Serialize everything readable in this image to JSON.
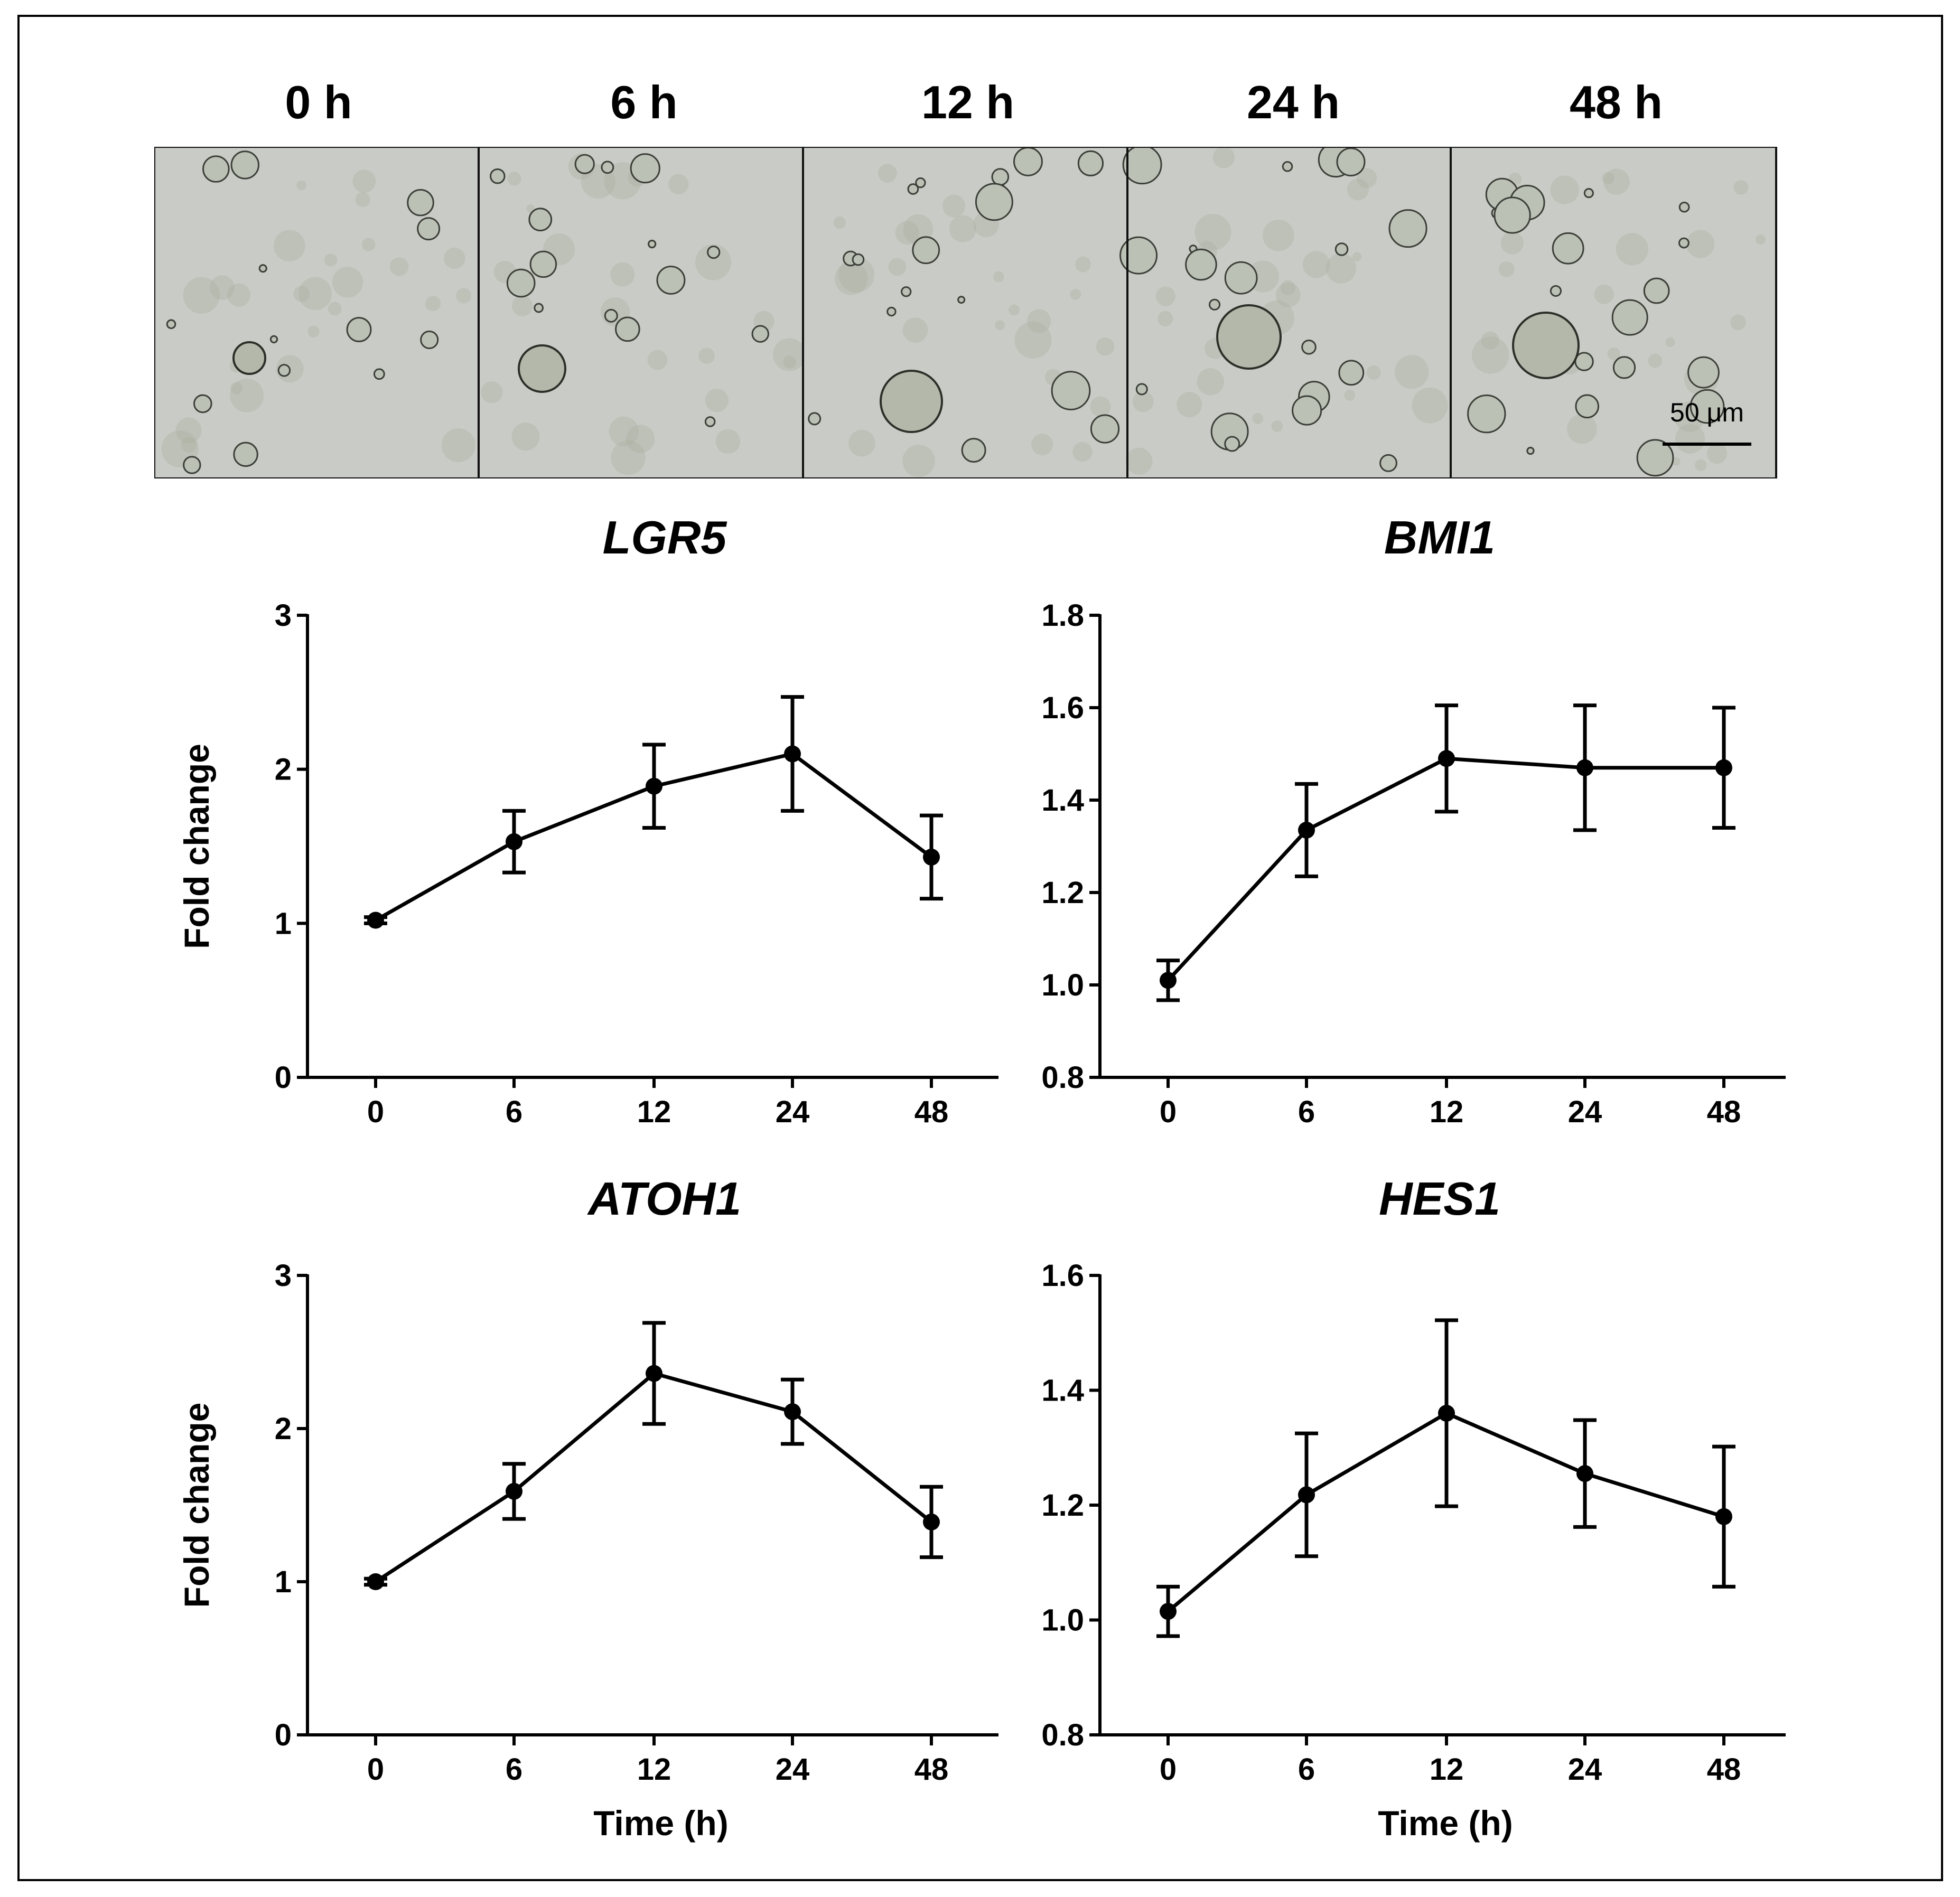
{
  "micrographs": {
    "time_labels": [
      "0 h",
      "6 h",
      "12 h",
      "24 h",
      "48 h"
    ],
    "scale_bar_label": "50 μm",
    "background_color": "#c9cbc6"
  },
  "chart_data": [
    {
      "type": "line",
      "title": "LGR5",
      "xlabel": "",
      "ylabel": "Fold change",
      "categories": [
        "0",
        "6",
        "12",
        "24",
        "48"
      ],
      "values": [
        1.02,
        1.53,
        1.89,
        2.1,
        1.43
      ],
      "error": [
        0.02,
        0.2,
        0.27,
        0.37,
        0.27
      ],
      "ylim": [
        0,
        3
      ],
      "yticks": [
        "0",
        "1",
        "2",
        "3"
      ]
    },
    {
      "type": "line",
      "title": "BMI1",
      "xlabel": "",
      "ylabel": "",
      "categories": [
        "0",
        "6",
        "12",
        "24",
        "48"
      ],
      "values": [
        1.01,
        1.335,
        1.49,
        1.47,
        1.47
      ],
      "error": [
        0.043,
        0.1,
        0.115,
        0.135,
        0.13
      ],
      "ylim": [
        0.8,
        1.8
      ],
      "yticks": [
        "0.8",
        "1.0",
        "1.2",
        "1.4",
        "1.6",
        "1.8"
      ]
    },
    {
      "type": "line",
      "title": "ATOH1",
      "xlabel": "Time (h)",
      "ylabel": "Fold change",
      "categories": [
        "0",
        "6",
        "12",
        "24",
        "48"
      ],
      "values": [
        1.0,
        1.59,
        2.36,
        2.11,
        1.39
      ],
      "error": [
        0.02,
        0.18,
        0.33,
        0.21,
        0.23
      ],
      "ylim": [
        0,
        3
      ],
      "yticks": [
        "0",
        "1",
        "2",
        "3"
      ]
    },
    {
      "type": "line",
      "title": "HES1",
      "xlabel": "Time (h)",
      "ylabel": "",
      "categories": [
        "0",
        "6",
        "12",
        "24",
        "48"
      ],
      "values": [
        1.015,
        1.218,
        1.36,
        1.255,
        1.18
      ],
      "error": [
        0.043,
        0.107,
        0.162,
        0.093,
        0.122
      ],
      "ylim": [
        0.8,
        1.6
      ],
      "yticks": [
        "0.8",
        "1.0",
        "1.2",
        "1.4",
        "1.6"
      ]
    }
  ]
}
